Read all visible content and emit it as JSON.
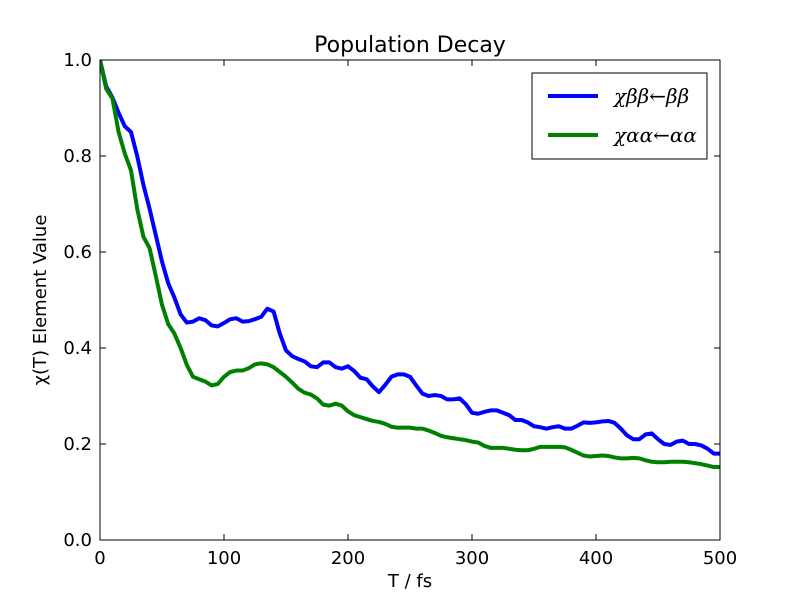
{
  "chart_data": {
    "type": "line",
    "title": "Population Decay",
    "xlabel": "T / fs",
    "ylabel": "χ(T) Element Value",
    "xlim": [
      0,
      500
    ],
    "ylim": [
      0.0,
      1.0
    ],
    "xticks": [
      "0",
      "100",
      "200",
      "300",
      "400",
      "500"
    ],
    "yticks": [
      "0.0",
      "0.2",
      "0.4",
      "0.6",
      "0.8",
      "1.0"
    ],
    "grid": false,
    "legend_position": "top-right",
    "series": [
      {
        "name": "χββ←ββ",
        "color": "#0000ff",
        "x": [
          0,
          5,
          10,
          15,
          20,
          25,
          30,
          35,
          40,
          45,
          50,
          55,
          60,
          65,
          70,
          75,
          80,
          85,
          90,
          95,
          100,
          105,
          110,
          115,
          120,
          125,
          130,
          135,
          140,
          145,
          150,
          155,
          160,
          165,
          170,
          175,
          180,
          185,
          190,
          195,
          200,
          205,
          210,
          215,
          220,
          225,
          230,
          235,
          240,
          245,
          250,
          255,
          260,
          265,
          270,
          275,
          280,
          285,
          290,
          295,
          300,
          305,
          310,
          315,
          320,
          325,
          330,
          335,
          340,
          345,
          350,
          355,
          360,
          365,
          370,
          375,
          380,
          385,
          390,
          395,
          400,
          405,
          410,
          415,
          420,
          425,
          430,
          435,
          440,
          445,
          450,
          455,
          460,
          465,
          470,
          475,
          480,
          485,
          490,
          495,
          500
        ],
        "y": [
          1.0,
          0.945,
          0.922,
          0.89,
          0.862,
          0.85,
          0.8,
          0.74,
          0.69,
          0.635,
          0.58,
          0.535,
          0.505,
          0.47,
          0.453,
          0.455,
          0.462,
          0.458,
          0.447,
          0.445,
          0.452,
          0.46,
          0.462,
          0.455,
          0.456,
          0.46,
          0.465,
          0.482,
          0.476,
          0.43,
          0.395,
          0.383,
          0.377,
          0.372,
          0.362,
          0.36,
          0.37,
          0.37,
          0.36,
          0.357,
          0.362,
          0.352,
          0.338,
          0.335,
          0.32,
          0.308,
          0.323,
          0.34,
          0.345,
          0.345,
          0.34,
          0.322,
          0.305,
          0.3,
          0.302,
          0.3,
          0.293,
          0.293,
          0.295,
          0.283,
          0.265,
          0.263,
          0.267,
          0.27,
          0.27,
          0.265,
          0.26,
          0.25,
          0.25,
          0.245,
          0.237,
          0.235,
          0.232,
          0.235,
          0.237,
          0.232,
          0.232,
          0.238,
          0.245,
          0.244,
          0.245,
          0.247,
          0.248,
          0.244,
          0.232,
          0.218,
          0.21,
          0.21,
          0.22,
          0.222,
          0.21,
          0.2,
          0.198,
          0.205,
          0.207,
          0.2,
          0.2,
          0.197,
          0.19,
          0.18,
          0.18
        ]
      },
      {
        "name": "χαα←αα",
        "color": "#008000",
        "x": [
          0,
          5,
          10,
          15,
          20,
          25,
          30,
          35,
          40,
          45,
          50,
          55,
          60,
          65,
          70,
          75,
          80,
          85,
          90,
          95,
          100,
          105,
          110,
          115,
          120,
          125,
          130,
          135,
          140,
          145,
          150,
          155,
          160,
          165,
          170,
          175,
          180,
          185,
          190,
          195,
          200,
          205,
          210,
          215,
          220,
          225,
          230,
          235,
          240,
          245,
          250,
          255,
          260,
          265,
          270,
          275,
          280,
          285,
          290,
          295,
          300,
          305,
          310,
          315,
          320,
          325,
          330,
          335,
          340,
          345,
          350,
          355,
          360,
          365,
          370,
          375,
          380,
          385,
          390,
          395,
          400,
          405,
          410,
          415,
          420,
          425,
          430,
          435,
          440,
          445,
          450,
          455,
          460,
          465,
          470,
          475,
          480,
          485,
          490,
          495,
          500
        ],
        "y": [
          1.0,
          0.94,
          0.92,
          0.85,
          0.805,
          0.77,
          0.69,
          0.632,
          0.608,
          0.55,
          0.49,
          0.45,
          0.43,
          0.4,
          0.365,
          0.34,
          0.335,
          0.33,
          0.322,
          0.325,
          0.34,
          0.35,
          0.353,
          0.353,
          0.358,
          0.366,
          0.368,
          0.366,
          0.36,
          0.35,
          0.34,
          0.328,
          0.315,
          0.307,
          0.303,
          0.295,
          0.282,
          0.28,
          0.284,
          0.28,
          0.268,
          0.26,
          0.256,
          0.252,
          0.248,
          0.246,
          0.242,
          0.236,
          0.234,
          0.234,
          0.234,
          0.232,
          0.232,
          0.228,
          0.223,
          0.217,
          0.214,
          0.212,
          0.21,
          0.208,
          0.205,
          0.203,
          0.196,
          0.192,
          0.192,
          0.192,
          0.19,
          0.188,
          0.187,
          0.187,
          0.19,
          0.194,
          0.194,
          0.194,
          0.194,
          0.193,
          0.188,
          0.182,
          0.176,
          0.174,
          0.175,
          0.176,
          0.175,
          0.172,
          0.17,
          0.17,
          0.171,
          0.17,
          0.166,
          0.163,
          0.162,
          0.162,
          0.163,
          0.163,
          0.163,
          0.162,
          0.16,
          0.158,
          0.155,
          0.152,
          0.152
        ]
      }
    ]
  }
}
